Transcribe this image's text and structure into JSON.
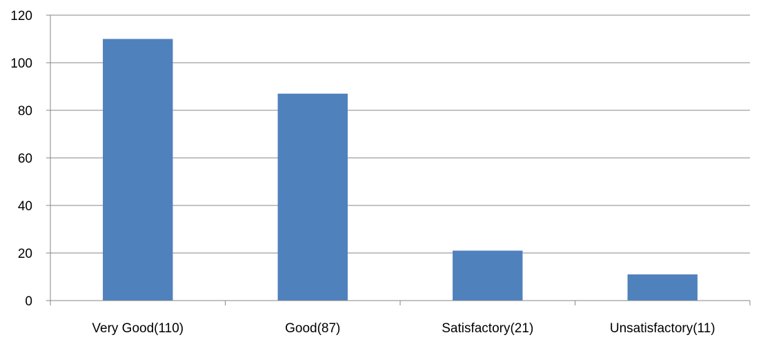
{
  "chart_data": {
    "type": "bar",
    "categories": [
      "Very Good(110)",
      "Good(87)",
      "Satisfactory(21)",
      "Unsatisfactory(11)"
    ],
    "values": [
      110,
      87,
      21,
      11
    ],
    "ylim": [
      0,
      120
    ],
    "yticks": [
      0,
      20,
      40,
      60,
      80,
      100,
      120
    ],
    "title": "",
    "xlabel": "",
    "ylabel": "",
    "grid": true,
    "legend": "none",
    "colors": {
      "bar": "#4F81BD",
      "grid": "#868686",
      "axis": "#868686"
    }
  }
}
